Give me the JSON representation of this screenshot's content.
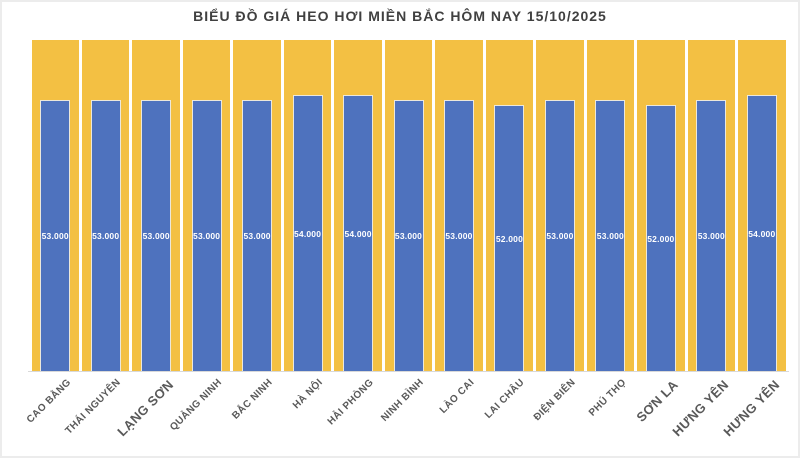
{
  "page": {
    "background": "#FFFFFF",
    "border_color": "#ECECEC"
  },
  "chart_data": {
    "type": "bar",
    "title": "BIỂU ĐỒ GIÁ HEO HƠI MIỀN BẮC HÔM NAY 15/10/2025",
    "categories": [
      "CAO BẰNG",
      "THÁI NGUYÊN",
      "LẠNG SƠN",
      "QUẢNG NINH",
      "BẮC NINH",
      "HÀ NỘI",
      "HẢI PHÒNG",
      "NINH BÌNH",
      "LÀO CAI",
      "LAI CHÂU",
      "ĐIỆN BIÊN",
      "PHÚ THỌ",
      "SƠN LA",
      "HƯNG YÊN",
      "HƯNG YÊN"
    ],
    "values": [
      53000,
      53000,
      53000,
      53000,
      53000,
      54000,
      54000,
      53000,
      53000,
      52000,
      53000,
      53000,
      52000,
      53000,
      54000
    ],
    "value_labels": [
      "53.000",
      "53.000",
      "53.000",
      "53.000",
      "53.000",
      "54.000",
      "54.000",
      "53.000",
      "53.000",
      "52.000",
      "53.000",
      "53.000",
      "52.000",
      "53.000",
      "54.000"
    ],
    "large_category_label_indexes": [
      2,
      12,
      13,
      14
    ],
    "ylim": [
      0,
      65000
    ],
    "xlabel": "",
    "ylabel": "",
    "grid": false,
    "legend": "none",
    "x_label_rotation_deg": 45,
    "background_column_value": 65000,
    "colors": {
      "bar": "#4E72BE",
      "background_column": "#F3C043",
      "value_label": "#FFFFFF",
      "category_label": "#595959",
      "title": "#404040",
      "axis_line": "#D9D9D9"
    }
  }
}
